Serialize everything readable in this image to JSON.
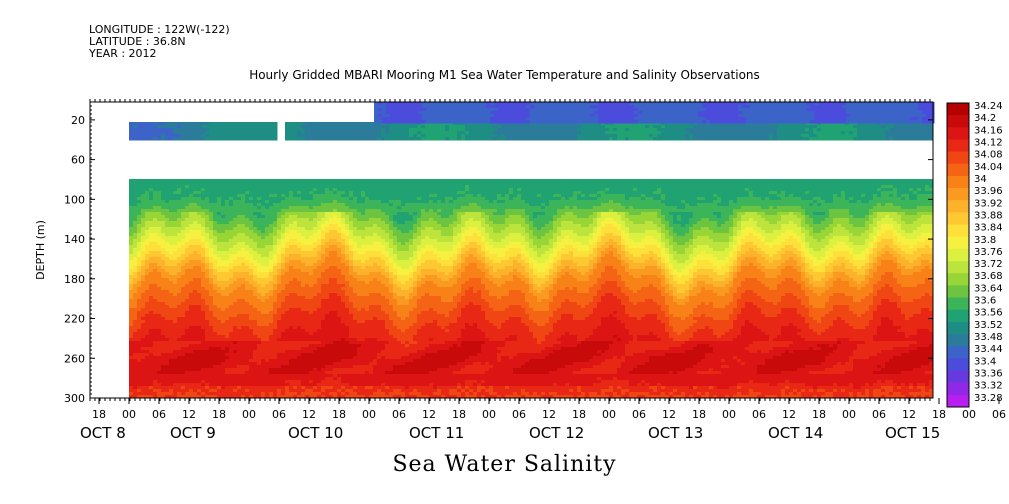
{
  "meta": {
    "longitude": "LONGITUDE : 122W(-122)",
    "latitude": "LATITUDE : 36.8N",
    "year": "YEAR : 2012"
  },
  "chart_data": {
    "type": "heatmap",
    "title": "Hourly Gridded MBARI Mooring M1 Sea Water Temperature and Salinity Observations",
    "subtitle": "Sea Water Salinity",
    "ylabel": "DEPTH (m)",
    "y_ticks": [
      20,
      60,
      100,
      140,
      180,
      220,
      260,
      300
    ],
    "ylim": [
      300,
      2
    ],
    "x_hour_ticks": [
      "18",
      "00",
      "06",
      "12",
      "18",
      "00",
      "06",
      "12",
      "18",
      "00",
      "06",
      "12",
      "18",
      "00",
      "06",
      "12",
      "18",
      "00",
      "06",
      "12",
      "18",
      "00",
      "06",
      "12",
      "18",
      "00",
      "06",
      "12",
      "18",
      "00",
      "06",
      "12"
    ],
    "x_day_labels": [
      "OCT 8",
      "OCT 9",
      "OCT 10",
      "OCT 11",
      "OCT 12",
      "OCT 13",
      "OCT 14",
      "OCT 15"
    ],
    "x_start": "OCT 7 18:00",
    "x_end": "OCT 15 20:00",
    "colorbar": {
      "levels": [
        34.24,
        34.2,
        34.16,
        34.12,
        34.08,
        34.04,
        34,
        33.96,
        33.92,
        33.88,
        33.84,
        33.8,
        33.76,
        33.72,
        33.68,
        33.64,
        33.6,
        33.56,
        33.52,
        33.48,
        33.44,
        33.4,
        33.36,
        33.32,
        33.28
      ],
      "colors": [
        "#b40000",
        "#c80a0a",
        "#dc1414",
        "#e82814",
        "#f04614",
        "#f46414",
        "#f88218",
        "#fa9a20",
        "#fcb22a",
        "#fdc832",
        "#fde03a",
        "#f6f040",
        "#dcf040",
        "#bce43c",
        "#98d638",
        "#6cc440",
        "#3cb45a",
        "#20a272",
        "#1e8e84",
        "#2a7c9a",
        "#3c64c8",
        "#4c4cdc",
        "#6838e0",
        "#9028e8",
        "#b81ef0"
      ]
    },
    "depth_profile_mean": [
      {
        "depth": 20,
        "value": 33.5
      },
      {
        "depth": 40,
        "value": 33.55
      },
      {
        "depth": 100,
        "value": 33.58
      },
      {
        "depth": 140,
        "value": 33.76
      },
      {
        "depth": 180,
        "value": 33.98
      },
      {
        "depth": 220,
        "value": 34.1
      },
      {
        "depth": 260,
        "value": 34.18
      },
      {
        "depth": 300,
        "value": 34.12
      }
    ],
    "surface_layer_value": 33.42,
    "missing_depth_range": [
      40,
      80
    ],
    "grid": false
  }
}
